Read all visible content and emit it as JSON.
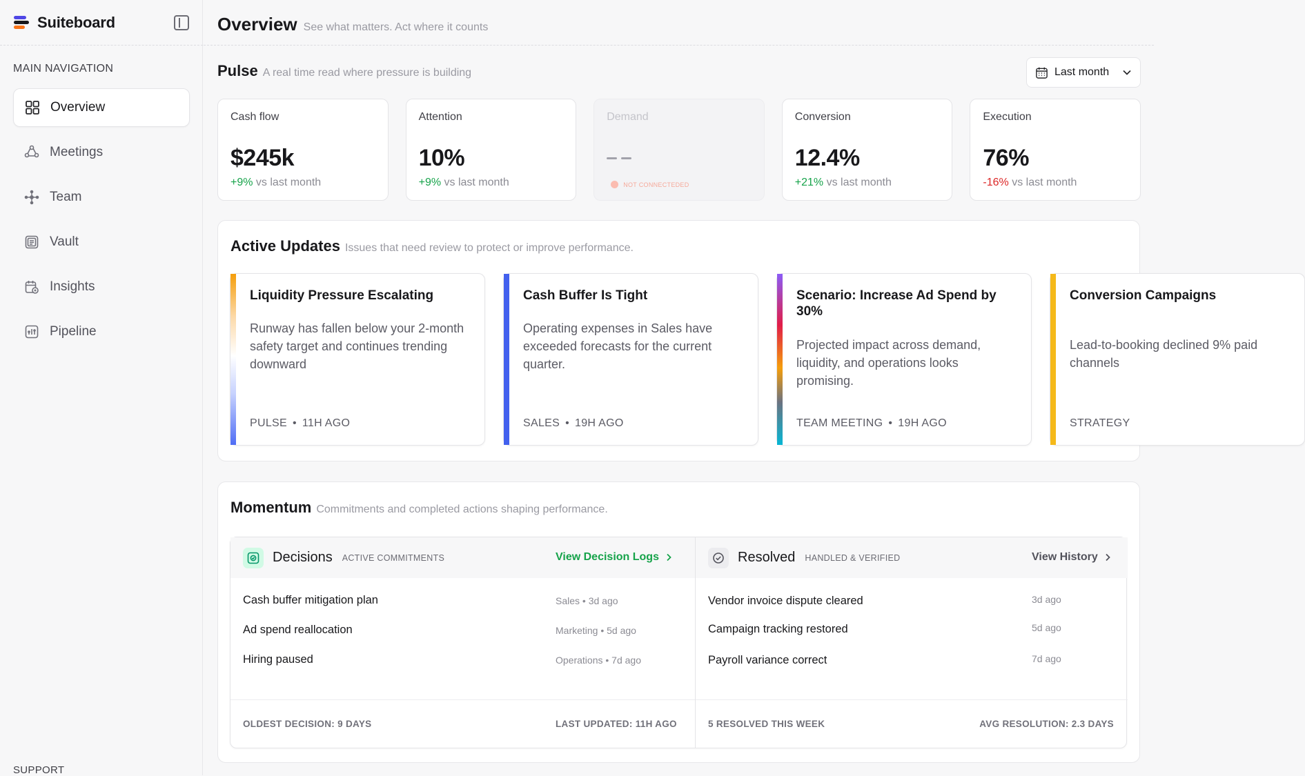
{
  "app": {
    "name": "Suiteboard"
  },
  "sidebar": {
    "heading": "MAIN NAVIGATION",
    "items": [
      {
        "label": "Overview",
        "icon": "grid-icon",
        "active": true
      },
      {
        "label": "Meetings",
        "icon": "meetings-icon"
      },
      {
        "label": "Team",
        "icon": "team-icon"
      },
      {
        "label": "Vault",
        "icon": "vault-icon"
      },
      {
        "label": "Insights",
        "icon": "insights-icon"
      },
      {
        "label": "Pipeline",
        "icon": "pipeline-icon"
      }
    ],
    "support_heading": "SUPPORT"
  },
  "header": {
    "title": "Overview",
    "subtitle": "See what matters. Act where it counts"
  },
  "pulse": {
    "title": "Pulse",
    "subtitle": "A real time read where pressure is building",
    "date_range": "Last month",
    "kpis": [
      {
        "label": "Cash flow",
        "value": "$245k",
        "delta": "+9%",
        "delta_suffix": "vs last month",
        "trend": "up"
      },
      {
        "label": "Attention",
        "value": "10%",
        "delta": "+9%",
        "delta_suffix": "vs last month",
        "trend": "up"
      },
      {
        "label": "Demand",
        "value": "",
        "status": "NOT CONNECTEDED",
        "disabled": true
      },
      {
        "label": "Conversion",
        "value": "12.4%",
        "delta": "+21%",
        "delta_suffix": "vs last month",
        "trend": "up"
      },
      {
        "label": "Execution",
        "value": "76%",
        "delta": "-16%",
        "delta_suffix": "vs last month",
        "trend": "down"
      }
    ]
  },
  "updates": {
    "title": "Active Updates",
    "subtitle": "Issues that need review to protect or improve performance.",
    "cards": [
      {
        "title": "Liquidity Pressure Escalating",
        "body": "Runway has fallen below your 2-month safety target and continues trending downward",
        "source": "PULSE",
        "time": "11H AGO"
      },
      {
        "title": "Cash Buffer Is Tight",
        "body": "Operating expenses in Sales have exceeded forecasts for the current quarter.",
        "source": "SALES",
        "time": "19H AGO"
      },
      {
        "title": "Scenario: Increase Ad Spend by 30%",
        "body": "Projected impact across demand, liquidity, and operations looks promising.",
        "source": "TEAM MEETING",
        "time": "19H AGO"
      },
      {
        "title": "Conversion Campaigns",
        "body": "Lead-to-booking declined 9% paid channels",
        "source": "STRATEGY",
        "time": ""
      }
    ]
  },
  "momentum": {
    "title": "Momentum",
    "subtitle": "Commitments and completed actions shaping performance.",
    "decisions": {
      "title": "Decisions",
      "tag": "ACTIVE COMMITMENTS",
      "link": "View Decision Logs",
      "rows": [
        {
          "label": "Cash buffer mitigation plan",
          "meta": "Sales • 3d ago"
        },
        {
          "label": "Ad spend reallocation",
          "meta": "Marketing • 5d ago"
        },
        {
          "label": "Hiring paused",
          "meta": "Operations • 7d ago"
        }
      ],
      "footer_left": "OLDEST DECISION: 9 DAYS",
      "footer_right": "LAST UPDATED: 11H AGO"
    },
    "resolved": {
      "title": "Resolved",
      "tag": "HANDLED & VERIFIED",
      "link": "View History",
      "rows": [
        {
          "label": "Vendor invoice dispute cleared",
          "meta": "3d ago"
        },
        {
          "label": "Campaign tracking restored",
          "meta": "5d ago"
        },
        {
          "label": "Payroll variance correct",
          "meta": "7d ago"
        }
      ],
      "footer_left": "5 RESOLVED THIS WEEK",
      "footer_right": "AVG RESOLUTION: 2.3 DAYS"
    }
  },
  "colors": {
    "accent_green": "#16a34a",
    "negative_red": "#dc2626",
    "link_green": "#16a34a",
    "link_gray": "#52525b"
  }
}
